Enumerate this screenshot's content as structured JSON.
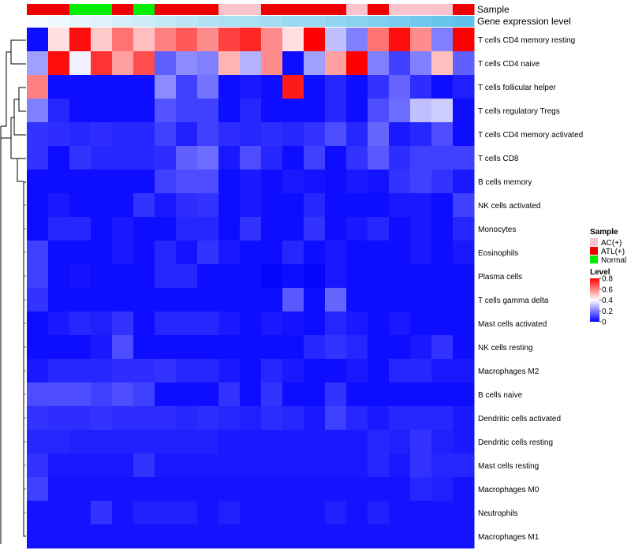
{
  "chart_data": {
    "type": "heatmap",
    "annotations": {
      "sample_title": "Sample",
      "gene_expression_title": "Gene expression level"
    },
    "sample_groups": [
      "ATL(+)",
      "ATL(+)",
      "Normal",
      "Normal",
      "ATL(+)",
      "Normal",
      "ATL(+)",
      "ATL(+)",
      "ATL(+)",
      "AC(+)",
      "AC(+)",
      "ATL(+)",
      "ATL(+)",
      "ATL(+)",
      "ATL(+)",
      "AC(+)",
      "ATL(+)",
      "AC(+)",
      "AC(+)",
      "AC(+)",
      "ATL(+)"
    ],
    "gene_expression_level": [
      0.05,
      0.1,
      0.15,
      0.2,
      0.25,
      0.3,
      0.35,
      0.4,
      0.45,
      0.5,
      0.5,
      0.55,
      0.6,
      0.6,
      0.65,
      0.7,
      0.75,
      0.8,
      0.85,
      0.9,
      0.95
    ],
    "rows": [
      "T cells CD4 memory resting",
      "T cells CD4 naive",
      "T cells follicular helper",
      "T cells regulatory  Tregs",
      "T cells CD4 memory activated",
      "T cells CD8",
      "B cells memory",
      "NK cells activated",
      "Monocytes",
      "Eosinophils",
      "Plasma cells",
      "T cells gamma delta",
      "Mast cells activated",
      "NK cells resting",
      "Macrophages M2",
      "B cells naive",
      "Dendritic cells activated",
      "Dendritic cells resting",
      "Mast cells resting",
      "Macrophages M0",
      "Neutrophils",
      "Macrophages M1"
    ],
    "values": [
      [
        0.02,
        0.45,
        0.78,
        0.48,
        0.62,
        0.5,
        0.6,
        0.66,
        0.58,
        0.7,
        0.74,
        0.58,
        0.45,
        0.8,
        0.3,
        0.2,
        0.62,
        0.78,
        0.58,
        0.2,
        0.8
      ],
      [
        0.25,
        0.78,
        0.38,
        0.72,
        0.55,
        0.68,
        0.15,
        0.22,
        0.2,
        0.52,
        0.28,
        0.58,
        0.02,
        0.25,
        0.55,
        0.8,
        0.2,
        0.1,
        0.2,
        0.5,
        0.15
      ],
      [
        0.6,
        0.02,
        0.02,
        0.02,
        0.02,
        0.02,
        0.22,
        0.1,
        0.18,
        0.02,
        0.04,
        0.02,
        0.76,
        0.02,
        0.06,
        0.02,
        0.08,
        0.16,
        0.07,
        0.02,
        0.05
      ],
      [
        0.2,
        0.06,
        0.02,
        0.02,
        0.02,
        0.02,
        0.13,
        0.1,
        0.1,
        0.02,
        0.06,
        0.02,
        0.02,
        0.02,
        0.06,
        0.02,
        0.12,
        0.17,
        0.3,
        0.32,
        0.02
      ],
      [
        0.08,
        0.07,
        0.06,
        0.07,
        0.06,
        0.06,
        0.1,
        0.05,
        0.1,
        0.07,
        0.06,
        0.07,
        0.06,
        0.08,
        0.12,
        0.06,
        0.16,
        0.04,
        0.06,
        0.12,
        0.02
      ],
      [
        0.08,
        0.02,
        0.08,
        0.06,
        0.06,
        0.06,
        0.07,
        0.15,
        0.17,
        0.04,
        0.12,
        0.06,
        0.02,
        0.1,
        0.02,
        0.08,
        0.14,
        0.07,
        0.1,
        0.1,
        0.1
      ],
      [
        0.02,
        0.02,
        0.02,
        0.02,
        0.02,
        0.02,
        0.1,
        0.12,
        0.12,
        0.02,
        0.04,
        0.02,
        0.04,
        0.03,
        0.02,
        0.04,
        0.03,
        0.08,
        0.1,
        0.08,
        0.04
      ],
      [
        0.02,
        0.04,
        0.02,
        0.02,
        0.02,
        0.08,
        0.04,
        0.07,
        0.08,
        0.02,
        0.04,
        0.02,
        0.02,
        0.06,
        0.02,
        0.02,
        0.02,
        0.04,
        0.04,
        0.02,
        0.1
      ],
      [
        0.02,
        0.06,
        0.06,
        0.02,
        0.04,
        0.02,
        0.02,
        0.06,
        0.06,
        0.02,
        0.08,
        0.02,
        0.02,
        0.08,
        0.02,
        0.04,
        0.06,
        0.02,
        0.04,
        0.02,
        0.06
      ],
      [
        0.1,
        0.02,
        0.02,
        0.02,
        0.04,
        0.02,
        0.06,
        0.03,
        0.08,
        0.04,
        0.02,
        0.02,
        0.06,
        0.02,
        0.04,
        0.02,
        0.02,
        0.02,
        0.04,
        0.02,
        0.04
      ],
      [
        0.1,
        0.02,
        0.03,
        0.02,
        0.02,
        0.02,
        0.06,
        0.06,
        0.02,
        0.02,
        0.02,
        0.01,
        0.02,
        0.01,
        0.04,
        0.02,
        0.02,
        0.02,
        0.02,
        0.02,
        0.02
      ],
      [
        0.08,
        0.02,
        0.02,
        0.02,
        0.02,
        0.02,
        0.02,
        0.02,
        0.02,
        0.02,
        0.02,
        0.02,
        0.14,
        0.02,
        0.16,
        0.02,
        0.02,
        0.02,
        0.02,
        0.02,
        0.02
      ],
      [
        0.02,
        0.04,
        0.06,
        0.05,
        0.08,
        0.02,
        0.06,
        0.06,
        0.06,
        0.04,
        0.02,
        0.04,
        0.03,
        0.02,
        0.06,
        0.04,
        0.02,
        0.04,
        0.02,
        0.02,
        0.02
      ],
      [
        0.02,
        0.02,
        0.02,
        0.04,
        0.12,
        0.02,
        0.02,
        0.02,
        0.02,
        0.02,
        0.02,
        0.02,
        0.02,
        0.06,
        0.08,
        0.06,
        0.02,
        0.02,
        0.04,
        0.08,
        0.02
      ],
      [
        0.04,
        0.06,
        0.06,
        0.06,
        0.07,
        0.07,
        0.08,
        0.06,
        0.06,
        0.04,
        0.02,
        0.06,
        0.04,
        0.02,
        0.02,
        0.04,
        0.02,
        0.06,
        0.06,
        0.04,
        0.04
      ],
      [
        0.12,
        0.12,
        0.12,
        0.1,
        0.12,
        0.1,
        0.02,
        0.02,
        0.02,
        0.08,
        0.02,
        0.08,
        0.02,
        0.02,
        0.08,
        0.02,
        0.02,
        0.02,
        0.02,
        0.02,
        0.02
      ],
      [
        0.08,
        0.07,
        0.07,
        0.08,
        0.07,
        0.07,
        0.07,
        0.06,
        0.07,
        0.06,
        0.05,
        0.07,
        0.06,
        0.04,
        0.1,
        0.06,
        0.04,
        0.06,
        0.06,
        0.06,
        0.04
      ],
      [
        0.06,
        0.06,
        0.05,
        0.05,
        0.05,
        0.05,
        0.05,
        0.05,
        0.05,
        0.04,
        0.04,
        0.04,
        0.04,
        0.04,
        0.04,
        0.04,
        0.06,
        0.05,
        0.08,
        0.05,
        0.04
      ],
      [
        0.08,
        0.04,
        0.04,
        0.04,
        0.04,
        0.08,
        0.04,
        0.04,
        0.04,
        0.04,
        0.04,
        0.04,
        0.04,
        0.04,
        0.04,
        0.04,
        0.06,
        0.04,
        0.08,
        0.06,
        0.06
      ],
      [
        0.1,
        0.03,
        0.03,
        0.03,
        0.03,
        0.03,
        0.03,
        0.03,
        0.03,
        0.03,
        0.03,
        0.03,
        0.03,
        0.03,
        0.03,
        0.03,
        0.03,
        0.03,
        0.06,
        0.05,
        0.03
      ],
      [
        0.03,
        0.03,
        0.03,
        0.08,
        0.03,
        0.05,
        0.05,
        0.05,
        0.03,
        0.05,
        0.03,
        0.03,
        0.03,
        0.03,
        0.05,
        0.03,
        0.05,
        0.03,
        0.03,
        0.03,
        0.03
      ],
      [
        0.03,
        0.03,
        0.03,
        0.03,
        0.03,
        0.03,
        0.03,
        0.03,
        0.03,
        0.03,
        0.03,
        0.03,
        0.03,
        0.03,
        0.03,
        0.03,
        0.03,
        0.03,
        0.03,
        0.03,
        0.03
      ]
    ],
    "legend": {
      "sample_title": "Sample",
      "sample_entries": [
        {
          "label": "AC(+)",
          "color": "#fbc4cc"
        },
        {
          "label": "ATL(+)",
          "color": "#ee0000"
        },
        {
          "label": "Normal",
          "color": "#00ee00"
        }
      ],
      "level_title": "Level",
      "level_ticks": [
        "0.8",
        "0.6",
        "0.4",
        "0.2",
        "0"
      ],
      "level_tick_values": [
        0.8,
        0.6,
        0.4,
        0.2,
        0
      ],
      "range": [
        0,
        0.8
      ],
      "colors": {
        "low": "#0000ff",
        "mid": "#ffffff",
        "high": "#ff0000"
      },
      "gene_colors": {
        "low": "#ffffff",
        "high": "#57bfe9"
      }
    }
  }
}
